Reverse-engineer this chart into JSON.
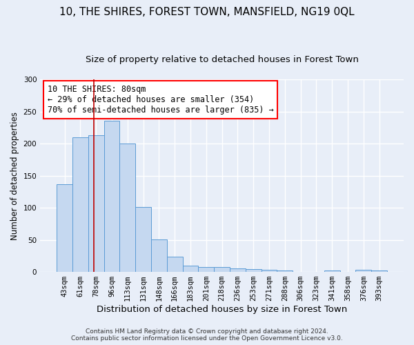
{
  "title": "10, THE SHIRES, FOREST TOWN, MANSFIELD, NG19 0QL",
  "subtitle": "Size of property relative to detached houses in Forest Town",
  "xlabel": "Distribution of detached houses by size in Forest Town",
  "ylabel": "Number of detached properties",
  "footer_line1": "Contains HM Land Registry data © Crown copyright and database right 2024.",
  "footer_line2": "Contains public sector information licensed under the Open Government Licence v3.0.",
  "categories": [
    "43sqm",
    "61sqm",
    "78sqm",
    "96sqm",
    "113sqm",
    "131sqm",
    "148sqm",
    "166sqm",
    "183sqm",
    "201sqm",
    "218sqm",
    "236sqm",
    "253sqm",
    "271sqm",
    "288sqm",
    "306sqm",
    "323sqm",
    "341sqm",
    "358sqm",
    "376sqm",
    "393sqm"
  ],
  "values": [
    137,
    210,
    213,
    236,
    200,
    101,
    51,
    24,
    10,
    8,
    8,
    5,
    4,
    3,
    2,
    0,
    0,
    2,
    0,
    3,
    2
  ],
  "bar_color": "#c5d8f0",
  "bar_edge_color": "#5b9bd5",
  "annotation_text": "10 THE SHIRES: 80sqm\n← 29% of detached houses are smaller (354)\n70% of semi-detached houses are larger (835) →",
  "annotation_box_color": "white",
  "annotation_box_edge_color": "red",
  "vline_x": 1.85,
  "vline_color": "#c00000",
  "ylim": [
    0,
    300
  ],
  "yticks": [
    0,
    50,
    100,
    150,
    200,
    250,
    300
  ],
  "background_color": "#e8eef8",
  "grid_color": "#ffffff",
  "title_fontsize": 11,
  "subtitle_fontsize": 9.5,
  "xlabel_fontsize": 9.5,
  "ylabel_fontsize": 8.5,
  "tick_fontsize": 7.5,
  "annotation_fontsize": 8.5,
  "footer_fontsize": 6.5
}
